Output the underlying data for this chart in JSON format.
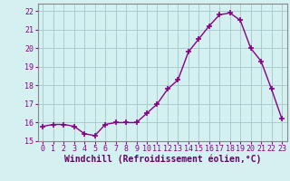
{
  "x": [
    0,
    1,
    2,
    3,
    4,
    5,
    6,
    7,
    8,
    9,
    10,
    11,
    12,
    13,
    14,
    15,
    16,
    17,
    18,
    19,
    20,
    21,
    22,
    23
  ],
  "y": [
    15.8,
    15.9,
    15.9,
    15.8,
    15.4,
    15.3,
    15.9,
    16.0,
    16.0,
    16.0,
    16.5,
    17.0,
    17.8,
    18.3,
    19.8,
    20.5,
    21.2,
    21.8,
    21.9,
    21.5,
    20.0,
    19.3,
    17.8,
    16.2
  ],
  "line_color": "#880088",
  "marker": "+",
  "markersize": 4,
  "markeredgewidth": 1.2,
  "linewidth": 1.0,
  "xlabel": "Windchill (Refroidissement éolien,°C)",
  "xlabel_fontsize": 7.0,
  "background_color": "#d4f0f0",
  "grid_color": "#aacccc",
  "spine_color": "#888888",
  "ylim": [
    15.0,
    22.4
  ],
  "xlim": [
    -0.5,
    23.5
  ],
  "yticks": [
    15,
    16,
    17,
    18,
    19,
    20,
    21,
    22
  ],
  "xtick_labels": [
    "0",
    "1",
    "2",
    "3",
    "4",
    "5",
    "6",
    "7",
    "8",
    "9",
    "10",
    "11",
    "12",
    "13",
    "14",
    "15",
    "16",
    "17",
    "18",
    "19",
    "20",
    "21",
    "22",
    "23"
  ],
  "tick_fontsize": 6.0,
  "ylabel_fontsize": 6.0
}
